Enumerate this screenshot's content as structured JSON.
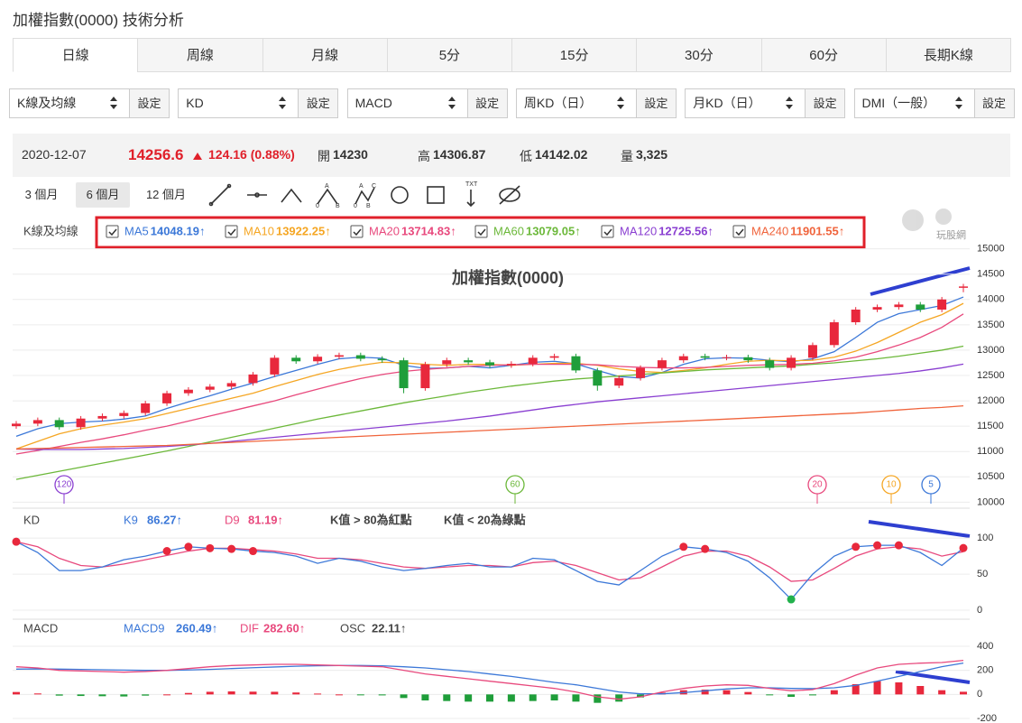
{
  "header": {
    "title": "加權指數(0000) 技術分析"
  },
  "tabs": [
    "日線",
    "周線",
    "月線",
    "5分",
    "15分",
    "30分",
    "60分",
    "長期K線"
  ],
  "active_tab": 0,
  "selectors": [
    {
      "value": "K線及均線",
      "button": "設定"
    },
    {
      "value": "KD",
      "button": "設定"
    },
    {
      "value": "MACD",
      "button": "設定"
    },
    {
      "value": "周KD（日）",
      "button": "設定"
    },
    {
      "value": "月KD（日）",
      "button": "設定"
    },
    {
      "value": "DMI（一般）",
      "button": "設定"
    }
  ],
  "quote": {
    "date": "2020-12-07",
    "price": "14256.6",
    "change": "124.16 (0.88%)",
    "open_label": "開",
    "open": "14230",
    "high_label": "高",
    "high": "14306.87",
    "low_label": "低",
    "low": "14142.02",
    "volume_label": "量",
    "volume": "3,325"
  },
  "periods": [
    "3 個月",
    "6 個月",
    "12 個月"
  ],
  "active_period": 1,
  "watermark": "玩股網",
  "main_chart": {
    "type": "candlestick",
    "title": "加權指數(0000)",
    "label": "K線及均線",
    "open": [
      11500,
      11550,
      11620,
      11480,
      11650,
      11700,
      11760,
      11950,
      12150,
      12220,
      12280,
      12350,
      12520,
      12850,
      12780,
      12870,
      12900,
      12830,
      12800,
      12250,
      12720,
      12800,
      12760,
      12700,
      12730,
      12850,
      12880,
      12600,
      12300,
      12450,
      12650,
      12800,
      12880,
      12850,
      12860,
      12800,
      12650,
      12850,
      13100,
      13550,
      13800,
      13850,
      13900,
      13800,
      14230
    ],
    "high": [
      11600,
      11670,
      11670,
      11700,
      11750,
      11810,
      12000,
      12200,
      12270,
      12330,
      12400,
      12570,
      12900,
      12900,
      12920,
      12950,
      12950,
      12880,
      12850,
      12770,
      12850,
      12850,
      12810,
      12780,
      12900,
      12930,
      12930,
      12650,
      12500,
      12700,
      12850,
      12930,
      12930,
      12910,
      12910,
      12850,
      12900,
      13150,
      13600,
      13850,
      13900,
      13950,
      13950,
      14050,
      14306.87
    ],
    "low": [
      11450,
      11500,
      11430,
      11430,
      11600,
      11650,
      11710,
      11900,
      12100,
      12170,
      12230,
      12300,
      12470,
      12730,
      12730,
      12820,
      12780,
      12750,
      12150,
      12200,
      12670,
      12710,
      12650,
      12650,
      12680,
      12800,
      12550,
      12200,
      12250,
      12400,
      12600,
      12750,
      12800,
      12800,
      12750,
      12600,
      12600,
      12800,
      13050,
      13500,
      13750,
      13800,
      13750,
      13750,
      14142.02
    ],
    "close": [
      11550,
      11620,
      11480,
      11650,
      11700,
      11760,
      11950,
      12150,
      12220,
      12280,
      12350,
      12520,
      12850,
      12780,
      12870,
      12900,
      12830,
      12800,
      12250,
      12720,
      12800,
      12760,
      12700,
      12730,
      12850,
      12880,
      12600,
      12300,
      12450,
      12650,
      12800,
      12880,
      12850,
      12860,
      12800,
      12650,
      12850,
      13100,
      13550,
      13800,
      13850,
      13900,
      13800,
      14000,
      14256.6
    ],
    "up_color": "#e8283c",
    "down_color": "#1f9e3a",
    "series": [
      {
        "name": "MA5",
        "color": "#3c78d8",
        "value_label": "14048.19↑",
        "values": [
          11300,
          11450,
          11550,
          11580,
          11600,
          11640,
          11700,
          11850,
          11980,
          12100,
          12230,
          12350,
          12480,
          12600,
          12720,
          12830,
          12860,
          12840,
          12700,
          12640,
          12650,
          12680,
          12650,
          12700,
          12760,
          12780,
          12730,
          12600,
          12480,
          12450,
          12560,
          12720,
          12830,
          12850,
          12840,
          12800,
          12770,
          12830,
          12970,
          13250,
          13550,
          13720,
          13800,
          13880,
          14048.19
        ]
      },
      {
        "name": "MA10",
        "color": "#f5a623",
        "value_label": "13922.25↑",
        "values": [
          11050,
          11200,
          11350,
          11450,
          11520,
          11580,
          11650,
          11750,
          11850,
          11950,
          12050,
          12150,
          12280,
          12400,
          12520,
          12620,
          12700,
          12760,
          12750,
          12720,
          12700,
          12720,
          12720,
          12700,
          12720,
          12740,
          12740,
          12700,
          12630,
          12580,
          12560,
          12600,
          12650,
          12720,
          12780,
          12800,
          12790,
          12800,
          12860,
          12980,
          13150,
          13350,
          13550,
          13700,
          13922.25
        ]
      },
      {
        "name": "MA20",
        "color": "#e8497d",
        "value_label": "13714.83↑",
        "values": [
          10950,
          11020,
          11100,
          11180,
          11250,
          11330,
          11420,
          11500,
          11600,
          11700,
          11800,
          11900,
          12000,
          12120,
          12230,
          12340,
          12440,
          12520,
          12580,
          12620,
          12650,
          12680,
          12700,
          12710,
          12720,
          12720,
          12720,
          12710,
          12680,
          12660,
          12650,
          12650,
          12660,
          12680,
          12700,
          12710,
          12720,
          12740,
          12790,
          12860,
          12970,
          13100,
          13250,
          13450,
          13714.83
        ]
      },
      {
        "name": "MA60",
        "color": "#6cb83a",
        "value_label": "13079.05↑",
        "values": [
          10450,
          10530,
          10610,
          10690,
          10770,
          10850,
          10930,
          11010,
          11100,
          11190,
          11280,
          11370,
          11460,
          11550,
          11640,
          11720,
          11800,
          11880,
          11960,
          12030,
          12100,
          12170,
          12230,
          12290,
          12340,
          12390,
          12430,
          12460,
          12490,
          12520,
          12550,
          12580,
          12610,
          12630,
          12650,
          12670,
          12690,
          12720,
          12750,
          12790,
          12830,
          12880,
          12940,
          13000,
          13079.05
        ]
      },
      {
        "name": "MA120",
        "color": "#8a3fd1",
        "value_label": "12725.56↑",
        "values": [
          11050,
          11040,
          11040,
          11040,
          11050,
          11060,
          11080,
          11100,
          11130,
          11160,
          11200,
          11240,
          11280,
          11320,
          11360,
          11400,
          11440,
          11480,
          11520,
          11560,
          11600,
          11650,
          11700,
          11760,
          11820,
          11880,
          11930,
          11980,
          12020,
          12060,
          12100,
          12140,
          12180,
          12220,
          12260,
          12300,
          12340,
          12380,
          12420,
          12460,
          12500,
          12540,
          12590,
          12650,
          12725.56
        ]
      },
      {
        "name": "MA240",
        "color": "#f0643c",
        "value_label": "11901.55↑",
        "values": [
          11050,
          11060,
          11070,
          11080,
          11090,
          11100,
          11110,
          11120,
          11140,
          11160,
          11180,
          11200,
          11220,
          11240,
          11260,
          11280,
          11300,
          11320,
          11340,
          11360,
          11380,
          11400,
          11420,
          11440,
          11460,
          11480,
          11500,
          11520,
          11540,
          11560,
          11580,
          11600,
          11620,
          11640,
          11660,
          11680,
          11700,
          11720,
          11740,
          11760,
          11790,
          11820,
          11850,
          11870,
          11901.55
        ]
      }
    ],
    "ylim": [
      9900,
      15100
    ],
    "yticks": [
      10000,
      10500,
      11000,
      11500,
      12000,
      12500,
      13000,
      13500,
      14000,
      14500,
      15000
    ],
    "markers": [
      {
        "label": "120",
        "color": "#8a3fd1"
      },
      {
        "label": "60",
        "color": "#6cb83a"
      },
      {
        "label": "20",
        "color": "#e8497d"
      },
      {
        "label": "10",
        "color": "#f5a623"
      },
      {
        "label": "5",
        "color": "#3c78d8"
      }
    ]
  },
  "kd_chart": {
    "type": "line",
    "label": "KD",
    "series": [
      {
        "name": "K9",
        "color": "#3c78d8",
        "value_label": "86.27↑",
        "values": [
          95,
          80,
          55,
          55,
          60,
          70,
          75,
          82,
          88,
          86,
          85,
          82,
          80,
          75,
          65,
          72,
          68,
          60,
          55,
          58,
          62,
          65,
          60,
          60,
          72,
          70,
          55,
          40,
          35,
          55,
          75,
          88,
          85,
          80,
          68,
          45,
          15,
          50,
          75,
          88,
          90,
          90,
          80,
          62,
          86.27
        ]
      },
      {
        "name": "D9",
        "color": "#e8497d",
        "value_label": "81.19↑",
        "values": [
          95,
          88,
          72,
          62,
          60,
          64,
          70,
          76,
          82,
          86,
          86,
          84,
          82,
          78,
          72,
          72,
          70,
          65,
          60,
          58,
          60,
          62,
          62,
          60,
          66,
          68,
          62,
          52,
          42,
          45,
          60,
          75,
          82,
          82,
          75,
          60,
          40,
          42,
          58,
          75,
          85,
          88,
          85,
          75,
          81.19
        ]
      }
    ],
    "notes": [
      "K值 > 80為紅點",
      "K值 < 20為綠點"
    ],
    "red_dot_above": 80,
    "green_dot_below": 20,
    "ylim": [
      -10,
      114
    ],
    "yticks": [
      0,
      50,
      100
    ]
  },
  "macd_chart": {
    "type": "line",
    "label": "MACD",
    "series": [
      {
        "name": "MACD9",
        "color": "#3c78d8",
        "value_label": "260.49↑",
        "values": [
          210,
          212,
          210,
          208,
          205,
          202,
          200,
          200,
          203,
          208,
          215,
          222,
          228,
          234,
          238,
          240,
          240,
          238,
          230,
          220,
          205,
          190,
          170,
          150,
          125,
          100,
          80,
          50,
          20,
          5,
          5,
          15,
          30,
          45,
          55,
          55,
          50,
          48,
          55,
          75,
          110,
          150,
          190,
          230,
          260.49
        ]
      },
      {
        "name": "DIF",
        "color": "#e8497d",
        "value_label": "282.60↑",
        "values": [
          230,
          220,
          200,
          195,
          190,
          185,
          190,
          200,
          215,
          230,
          240,
          245,
          250,
          250,
          245,
          240,
          235,
          230,
          200,
          170,
          150,
          130,
          110,
          90,
          70,
          50,
          20,
          -20,
          -40,
          -20,
          20,
          50,
          70,
          80,
          75,
          50,
          30,
          40,
          90,
          160,
          220,
          250,
          260,
          265,
          282.6
        ]
      }
    ],
    "osc": {
      "name": "OSC",
      "value_label": "22.11↑",
      "up_color": "#e8283c",
      "down_color": "#1f9e3a",
      "values": [
        20,
        8,
        -10,
        -13,
        -15,
        -17,
        -10,
        0,
        12,
        22,
        25,
        23,
        22,
        16,
        7,
        0,
        -5,
        -8,
        -30,
        -50,
        -55,
        -60,
        -60,
        -60,
        -55,
        -50,
        -60,
        -70,
        -60,
        -25,
        15,
        35,
        40,
        35,
        20,
        -5,
        -20,
        -8,
        35,
        85,
        110,
        100,
        70,
        35,
        22.11
      ]
    },
    "ylim": [
      -230,
      475
    ],
    "yticks": [
      -200,
      0,
      200,
      400
    ]
  }
}
